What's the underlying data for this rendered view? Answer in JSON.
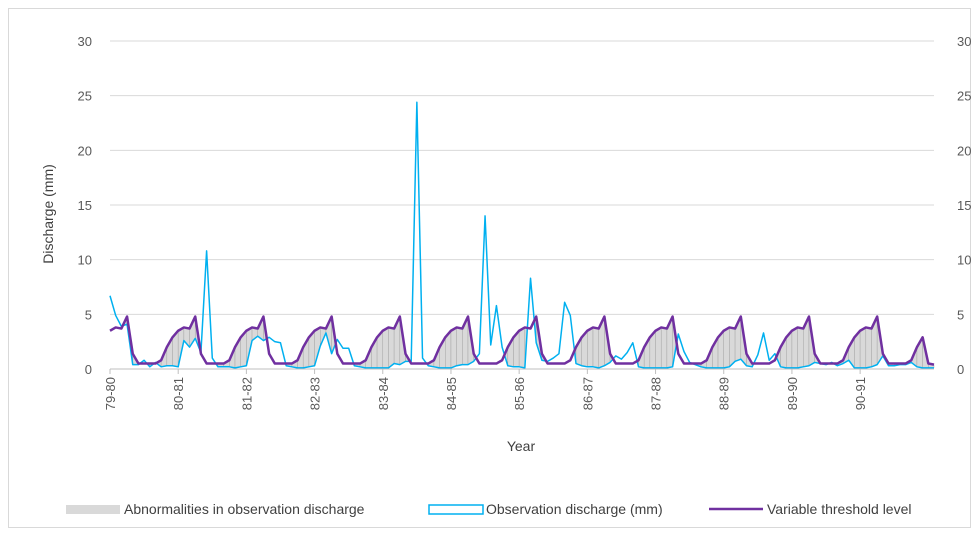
{
  "chart_data": {
    "type": "line",
    "title": "",
    "xlabel": "Year",
    "ylabel": "Discharge (mm)",
    "ylim": [
      0,
      30
    ],
    "y_ticks": [
      "0",
      "5",
      "10",
      "15",
      "20",
      "25",
      "30"
    ],
    "right_axis_ticks": [
      "0",
      "5",
      "10",
      "15",
      "20",
      "25",
      "30"
    ],
    "grid": true,
    "legend_position": "bottom",
    "x_tick_labels": [
      "79-80",
      "80-81",
      "81-82",
      "82-83",
      "83-84",
      "84-85",
      "85-86",
      "86-87",
      "87-88",
      "88-89",
      "89-90",
      "90-91"
    ],
    "months_per_year": 12,
    "series": [
      {
        "name": "Abnormalities in observation discharge",
        "kind": "area-between",
        "color": "#d9d9d9",
        "values": []
      },
      {
        "name": "Observation discharge (mm)",
        "kind": "line",
        "color": "#00b0f0",
        "values": [
          6.7,
          4.9,
          3.9,
          4.1,
          0.4,
          0.4,
          0.8,
          0.2,
          0.6,
          0.2,
          0.3,
          0.3,
          0.2,
          2.6,
          2.0,
          2.8,
          1.5,
          10.8,
          1.0,
          0.2,
          0.2,
          0.2,
          0.1,
          0.2,
          0.3,
          2.6,
          3.0,
          2.6,
          2.9,
          2.5,
          2.4,
          0.3,
          0.2,
          0.1,
          0.1,
          0.2,
          0.3,
          2.1,
          3.3,
          1.4,
          2.7,
          1.9,
          1.9,
          0.3,
          0.2,
          0.1,
          0.1,
          0.1,
          0.1,
          0.1,
          0.5,
          0.4,
          0.7,
          0.7,
          24.4,
          1.0,
          0.3,
          0.2,
          0.1,
          0.1,
          0.1,
          0.3,
          0.4,
          0.4,
          0.7,
          1.4,
          14.0,
          2.2,
          5.8,
          2.0,
          0.3,
          0.2,
          0.2,
          0.1,
          8.3,
          2.4,
          0.8,
          0.7,
          1.0,
          1.4,
          6.1,
          4.9,
          0.5,
          0.3,
          0.2,
          0.2,
          0.1,
          0.3,
          0.6,
          1.2,
          0.9,
          1.5,
          2.4,
          0.2,
          0.1,
          0.1,
          0.1,
          0.1,
          0.1,
          0.2,
          3.2,
          1.6,
          0.6,
          0.4,
          0.2,
          0.1,
          0.1,
          0.1,
          0.1,
          0.2,
          0.7,
          0.9,
          0.3,
          0.2,
          1.3,
          3.3,
          0.8,
          1.4,
          0.2,
          0.1,
          0.1,
          0.1,
          0.2,
          0.3,
          0.6,
          0.5,
          0.4,
          0.6,
          0.3,
          0.5,
          0.8,
          0.1,
          0.1,
          0.1,
          0.2,
          0.4,
          1.2,
          0.3,
          0.3,
          0.4,
          0.4,
          0.6,
          0.2,
          0.1,
          0.1,
          0.1
        ]
      },
      {
        "name": "Variable threshold level",
        "kind": "line",
        "color": "#7030a0",
        "values": [
          3.5,
          3.8,
          3.7,
          4.8,
          1.4,
          0.5,
          0.5,
          0.5,
          0.5,
          0.8,
          2.0,
          2.9,
          3.5,
          3.8,
          3.7,
          4.8,
          1.4,
          0.5,
          0.5,
          0.5,
          0.5,
          0.8,
          2.0,
          2.9,
          3.5,
          3.8,
          3.7,
          4.8,
          1.4,
          0.5,
          0.5,
          0.5,
          0.5,
          0.8,
          2.0,
          2.9,
          3.5,
          3.8,
          3.7,
          4.8,
          1.4,
          0.5,
          0.5,
          0.5,
          0.5,
          0.8,
          2.0,
          2.9,
          3.5,
          3.8,
          3.7,
          4.8,
          1.4,
          0.5,
          0.5,
          0.5,
          0.5,
          0.8,
          2.0,
          2.9,
          3.5,
          3.8,
          3.7,
          4.8,
          1.4,
          0.5,
          0.5,
          0.5,
          0.5,
          0.8,
          2.0,
          2.9,
          3.5,
          3.8,
          3.7,
          4.8,
          1.4,
          0.5,
          0.5,
          0.5,
          0.5,
          0.8,
          2.0,
          2.9,
          3.5,
          3.8,
          3.7,
          4.8,
          1.4,
          0.5,
          0.5,
          0.5,
          0.5,
          0.8,
          2.0,
          2.9,
          3.5,
          3.8,
          3.7,
          4.8,
          1.4,
          0.5,
          0.5,
          0.5,
          0.5,
          0.8,
          2.0,
          2.9,
          3.5,
          3.8,
          3.7,
          4.8,
          1.4,
          0.5,
          0.5,
          0.5,
          0.5,
          0.8,
          2.0,
          2.9,
          3.5,
          3.8,
          3.7,
          4.8,
          1.4,
          0.5,
          0.5,
          0.5,
          0.5,
          0.8,
          2.0,
          2.9,
          3.5,
          3.8,
          3.7,
          4.8,
          1.4,
          0.5,
          0.5,
          0.5,
          0.5,
          0.8,
          2.0,
          2.9,
          0.5,
          0.4
        ]
      }
    ]
  },
  "legend": {
    "abnormal_label": "Abnormalities in observation discharge",
    "observation_label": "Observation discharge (mm)",
    "threshold_label": "Variable threshold level"
  }
}
